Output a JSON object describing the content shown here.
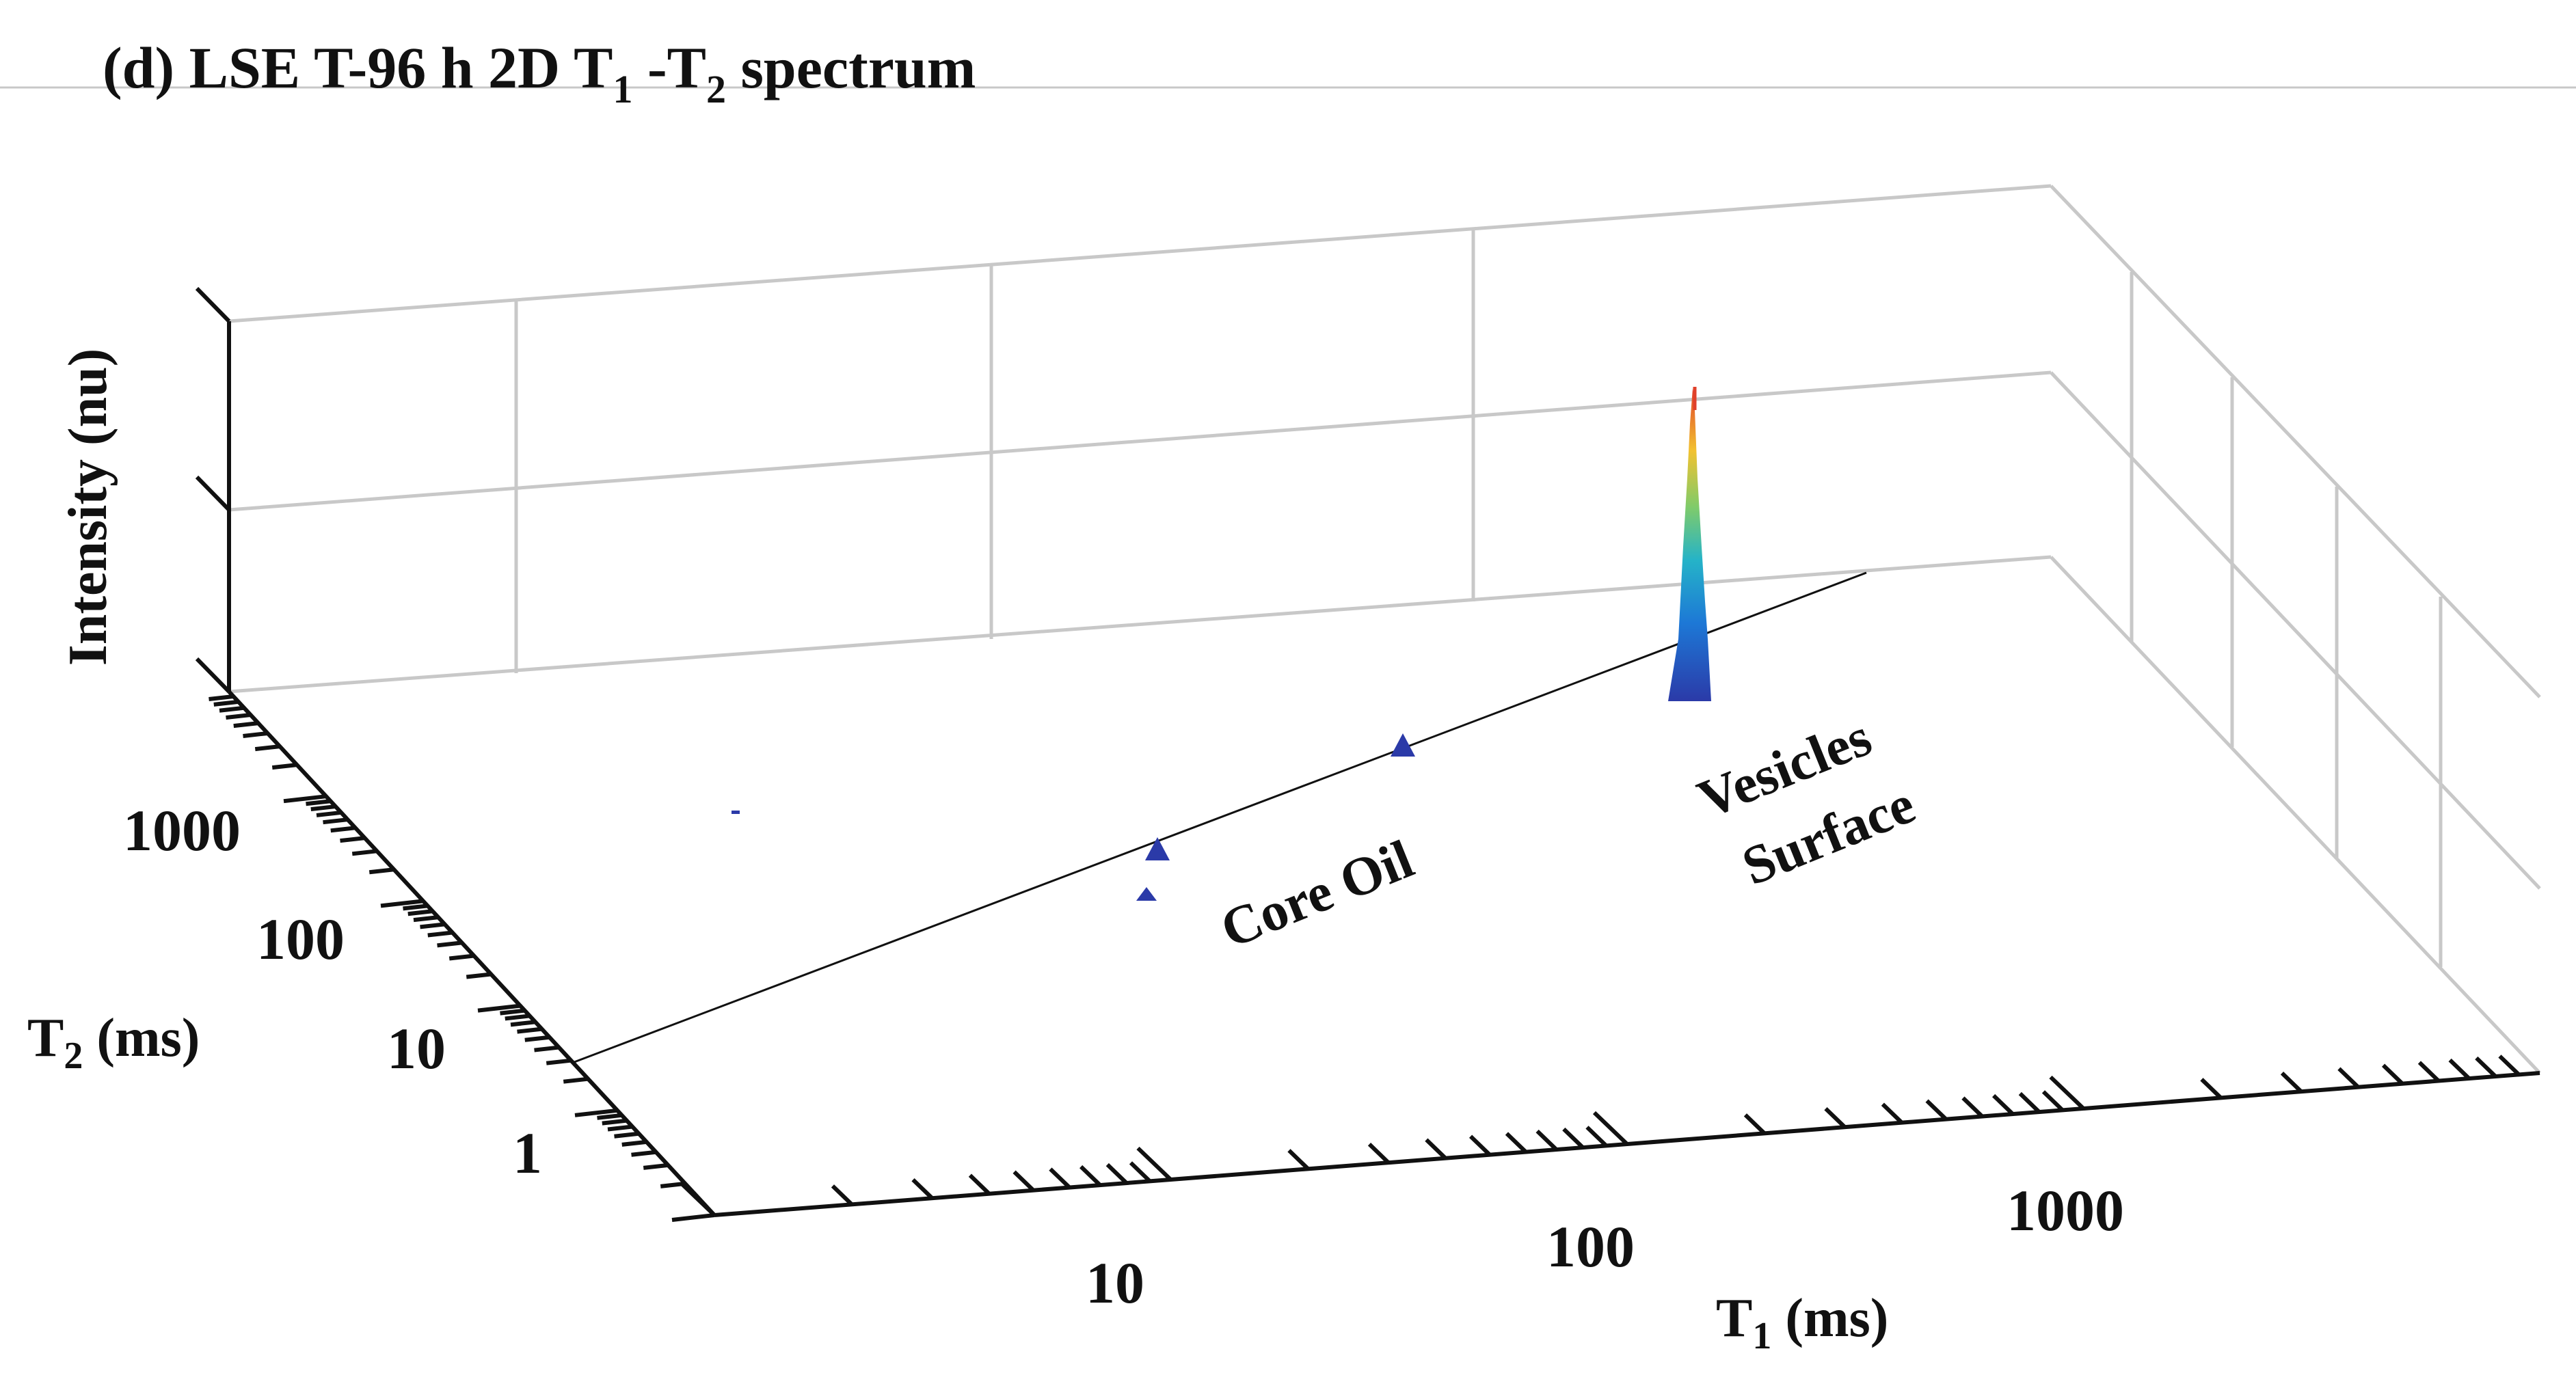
{
  "chart_data": {
    "type": "surface",
    "title": {
      "prefix": "(d) LSE T-96 h  2D T",
      "sub1": "1",
      "mid": " -T",
      "sub2": "2",
      "suffix": " spectrum"
    },
    "xlabel": {
      "main": "T",
      "sub": "1",
      "unit": " (ms)"
    },
    "ylabel": {
      "main": "T",
      "sub": "2",
      "unit": " (ms)"
    },
    "zlabel": "Intensity (nu)",
    "x_ticks": [
      "10",
      "100",
      "1000"
    ],
    "y_ticks": [
      "1",
      "10",
      "100",
      "1000"
    ],
    "annotations": [
      "Core Oil",
      "Vesicles",
      "Surface"
    ],
    "peaks": [
      {
        "label": "Vesicles Surface",
        "T1_ms": 140,
        "T2_ms": 130,
        "intensity": 1.0
      },
      {
        "label": "Core Oil",
        "T1_ms": 20,
        "T2_ms": 25,
        "intensity": 0.06
      },
      {
        "label": "Core Oil",
        "T1_ms": 9,
        "T2_ms": 5,
        "intensity": 0.06
      },
      {
        "label": "Core Oil",
        "T1_ms": 8,
        "T2_ms": 3,
        "intensity": 0.04
      }
    ],
    "colormap": [
      "#2b3aa8",
      "#1d78d6",
      "#25b3c8",
      "#7fcb6a",
      "#f2c230",
      "#e0402a"
    ]
  }
}
